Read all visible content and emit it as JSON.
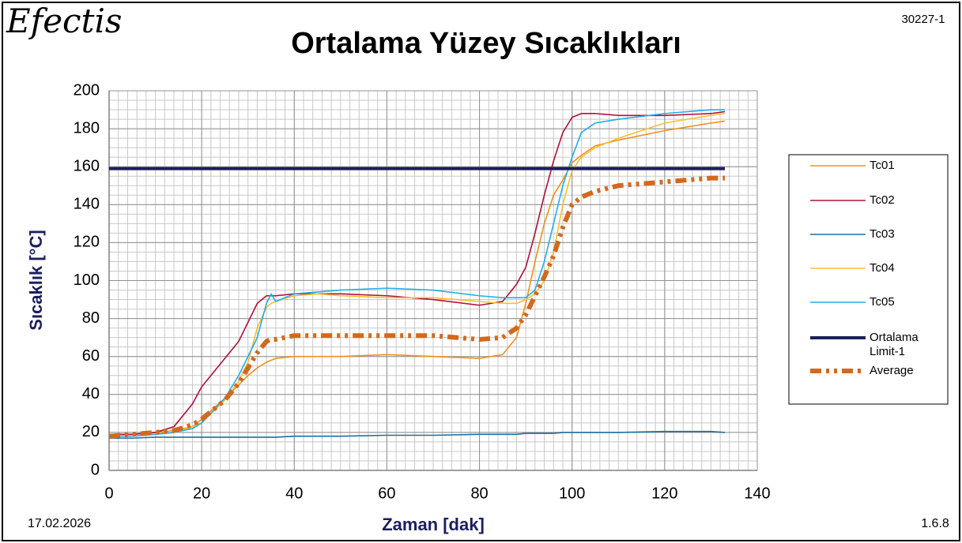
{
  "logo": "Efectis",
  "doc_id": "30227-1",
  "date": "17.02.2026",
  "version": "1.6.8",
  "chart_data": {
    "type": "line",
    "title": "Ortalama Yüzey Sıcaklıkları",
    "x_label": "Zaman [dak]",
    "y_label": "Sıcaklık [°C]",
    "xlim": [
      0,
      140
    ],
    "ylim": [
      0,
      200
    ],
    "xticks": [
      0,
      20,
      40,
      60,
      80,
      100,
      120,
      140
    ],
    "yticks": [
      0,
      20,
      40,
      60,
      80,
      100,
      120,
      140,
      160,
      180,
      200
    ],
    "grid": true,
    "minor_grid": {
      "x": 2,
      "y": 5
    },
    "legend": "right",
    "x": [
      0,
      5,
      10,
      14,
      18,
      20,
      25,
      28,
      30,
      32,
      34,
      35,
      36,
      40,
      45,
      50,
      60,
      70,
      80,
      85,
      88,
      90,
      92,
      94,
      96,
      98,
      100,
      102,
      105,
      110,
      120,
      130,
      133
    ],
    "series": [
      {
        "name": "Tc01",
        "color": "#f0901e",
        "values": [
          19,
          19,
          20,
          21,
          23,
          27,
          38,
          45,
          50,
          54,
          57,
          58,
          59,
          60,
          60,
          60,
          61,
          60,
          59,
          61,
          70,
          88,
          110,
          130,
          145,
          153,
          162,
          166,
          171,
          174,
          179,
          183,
          184
        ]
      },
      {
        "name": "Tc02",
        "color": "#b0103a",
        "values": [
          19,
          19,
          20,
          23,
          35,
          44,
          59,
          68,
          78,
          88,
          92,
          92,
          92,
          93,
          93,
          93,
          92,
          90,
          87,
          89,
          98,
          107,
          125,
          145,
          163,
          178,
          186,
          188,
          188,
          187,
          187,
          188,
          189
        ]
      },
      {
        "name": "Tc03",
        "color": "#1f6e9c",
        "values": [
          17,
          17,
          17.5,
          17.5,
          17.5,
          17.5,
          17.5,
          17.5,
          17.5,
          17.5,
          17.5,
          17.5,
          17.5,
          18,
          18,
          18,
          18.5,
          18.5,
          19,
          19,
          19,
          19.5,
          19.5,
          19.5,
          19.5,
          20,
          20,
          20,
          20,
          20,
          20.5,
          20.5,
          20
        ]
      },
      {
        "name": "Tc04",
        "color": "#f6c032",
        "values": [
          18,
          18,
          19,
          20,
          23,
          25,
          37,
          47,
          57,
          75,
          86,
          88,
          89,
          92,
          93,
          92,
          91,
          91,
          89,
          88,
          88,
          90,
          93,
          100,
          115,
          140,
          158,
          165,
          170,
          175,
          183,
          187,
          188
        ]
      },
      {
        "name": "Tc05",
        "color": "#22aee8",
        "values": [
          18,
          18,
          19,
          20,
          22,
          25,
          38,
          50,
          60,
          70,
          88,
          93,
          89,
          93,
          94,
          95,
          96,
          95,
          92,
          91,
          91,
          91,
          95,
          110,
          130,
          150,
          165,
          178,
          183,
          185,
          188,
          190,
          190
        ]
      },
      {
        "name": "Ortalama Limit-1",
        "color": "#1a1f5c",
        "width": 4,
        "x": [
          0,
          133
        ],
        "values": [
          159,
          159
        ]
      },
      {
        "name": "Average",
        "color": "#d2691e",
        "width": 6,
        "dash": "14 6 4 6 4 6",
        "values": [
          18,
          19,
          20,
          21,
          24,
          27,
          37,
          46,
          54,
          62,
          68,
          69,
          69,
          71,
          71,
          71,
          71,
          71,
          69,
          70,
          75,
          82,
          92,
          102,
          113,
          128,
          140,
          144,
          147,
          150,
          152,
          154,
          154
        ]
      }
    ]
  }
}
